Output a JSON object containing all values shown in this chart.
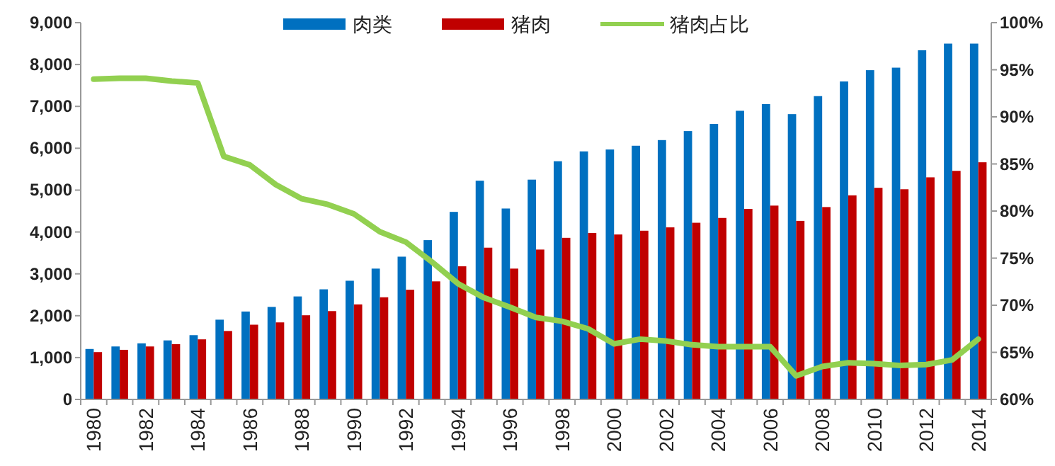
{
  "chart_data": {
    "type": "bar",
    "categories": [
      "1980",
      null,
      "1982",
      null,
      "1984",
      null,
      "1986",
      null,
      "1988",
      null,
      "1990",
      null,
      "1992",
      null,
      "1994",
      null,
      "1996",
      null,
      "1998",
      null,
      "2000",
      null,
      "2002",
      null,
      "2004",
      null,
      "2006",
      null,
      "2008",
      null,
      "2010",
      null,
      "2012",
      null,
      "2014"
    ],
    "series": [
      {
        "name": "肉类",
        "color": "#0070c0",
        "values": [
          1205,
          1265,
          1340,
          1410,
          1535,
          1905,
          2100,
          2210,
          2460,
          2630,
          2835,
          3125,
          3410,
          3805,
          4480,
          5225,
          4560,
          5250,
          5690,
          5925,
          5970,
          6060,
          6195,
          6410,
          6580,
          6895,
          7055,
          6815,
          7245,
          7595,
          7865,
          7925,
          8340,
          8500,
          8500
        ]
      },
      {
        "name": "猪肉",
        "color": "#c00000",
        "values": [
          1130,
          1185,
          1265,
          1320,
          1435,
          1635,
          1785,
          1840,
          2010,
          2110,
          2270,
          2440,
          2620,
          2820,
          3180,
          3625,
          3125,
          3580,
          3860,
          3975,
          3940,
          4030,
          4110,
          4220,
          4335,
          4550,
          4630,
          4265,
          4595,
          4875,
          5055,
          5020,
          5305,
          5460,
          5665
        ]
      },
      {
        "name": "猪肉占比",
        "type": "line",
        "axis": "y2",
        "color": "#92d050",
        "values": [
          94.0,
          94.1,
          94.1,
          93.8,
          93.6,
          85.8,
          84.9,
          82.8,
          81.3,
          80.7,
          79.7,
          77.8,
          76.7,
          74.6,
          72.3,
          70.8,
          69.8,
          68.7,
          68.3,
          67.5,
          65.9,
          66.4,
          66.2,
          65.8,
          65.6,
          65.6,
          65.6,
          62.5,
          63.5,
          63.9,
          63.8,
          63.6,
          63.7,
          64.2,
          66.4
        ]
      }
    ],
    "ylim": [
      0,
      9000
    ],
    "yticks": [
      0,
      {
        "value": 1000,
        "label": "1,000"
      },
      {
        "value": 2000,
        "label": "2,000"
      },
      {
        "value": 3000,
        "label": "3,000"
      },
      {
        "value": 4000,
        "label": "4,000"
      },
      {
        "value": 5000,
        "label": "5,000"
      },
      {
        "value": 6000,
        "label": "6,000"
      },
      {
        "value": 7000,
        "label": "7,000"
      },
      {
        "value": 8000,
        "label": "8,000"
      },
      {
        "value": 9000,
        "label": "9,000"
      }
    ],
    "y2lim": [
      60,
      100
    ],
    "y2ticks": [
      {
        "value": 60,
        "label": "60%"
      },
      {
        "value": 65,
        "label": "65%"
      },
      {
        "value": 70,
        "label": "70%"
      },
      {
        "value": 75,
        "label": "75%"
      },
      {
        "value": 80,
        "label": "80%"
      },
      {
        "value": 85,
        "label": "85%"
      },
      {
        "value": 90,
        "label": "90%"
      },
      {
        "value": 95,
        "label": "95%"
      },
      {
        "value": 100,
        "label": "100%"
      }
    ],
    "legend": "top",
    "grid": false
  }
}
